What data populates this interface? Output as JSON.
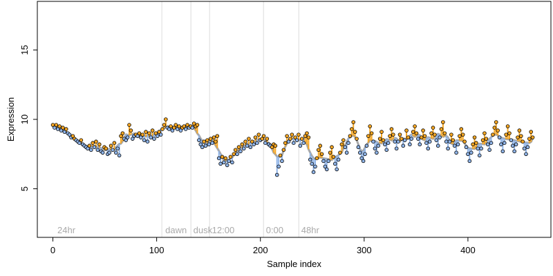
{
  "chart_data": {
    "type": "scatter",
    "xlabel": "Sample index",
    "ylabel": "Expression",
    "xlim": [
      -15,
      480
    ],
    "ylim": [
      1.5,
      18.5
    ],
    "x_ticks": [
      0,
      100,
      200,
      300,
      400
    ],
    "y_ticks": [
      5,
      10,
      15
    ],
    "grid": false,
    "colors": {
      "line": "#a8a8a8",
      "orange": "#f5a623",
      "blue": "#8fb4e8",
      "divider": "#dcdcdc",
      "label": "#a9a9a9"
    },
    "dividers": [
      105,
      133,
      151,
      203,
      237
    ],
    "region_labels": [
      {
        "text": "24hr",
        "x": 3
      },
      {
        "text": "dawn",
        "x": 107
      },
      {
        "text": "dusk",
        "x": 134
      },
      {
        "text": "12:00",
        "x": 152
      },
      {
        "text": "0:00",
        "x": 204
      },
      {
        "text": "48hr",
        "x": 238
      }
    ],
    "series": [
      {
        "values": [
          9.6,
          9.4,
          9.6,
          9.3,
          9.5,
          9.2,
          9.4,
          9.1,
          9.3,
          9.0,
          8.9,
          8.7,
          8.8,
          8.6,
          8.5,
          8.4,
          8.3,
          8.5,
          8.2,
          8.1,
          8.0,
          7.9,
          8.1,
          7.8,
          8.3,
          8.0,
          8.4,
          7.8,
          8.2,
          7.7,
          7.6,
          8.0,
          7.9,
          7.5,
          7.6,
          8.1,
          7.8,
          8.3,
          7.6,
          7.9,
          7.4,
          8.8,
          9.0,
          8.6,
          8.5,
          8.7,
          9.6,
          9.2,
          8.6,
          8.8,
          8.9,
          8.8,
          9.0,
          8.7,
          8.9,
          8.5,
          9.1,
          8.4,
          9.0,
          8.7,
          9.2,
          8.6,
          9.0,
          8.8,
          9.1,
          8.9,
          9.3,
          9.6,
          10.0,
          9.4,
          9.3,
          9.5,
          9.2,
          9.4,
          9.6,
          9.3,
          9.5,
          9.2,
          9.4,
          9.5,
          9.3,
          9.6,
          9.4,
          9.5,
          9.4,
          9.7,
          9.5,
          9.6,
          8.5,
          8.2,
          8.0,
          8.4,
          8.1,
          8.5,
          8.2,
          8.6,
          8.3,
          8.7,
          8.4,
          8.8,
          7.2,
          6.8,
          7.3,
          6.9,
          7.2,
          6.7,
          7.0,
          7.3,
          6.9,
          7.5,
          7.8,
          7.5,
          8.0,
          7.7,
          8.2,
          7.9,
          8.4,
          8.1,
          8.6,
          8.0,
          8.4,
          8.2,
          8.7,
          8.3,
          8.9,
          8.5,
          8.6,
          8.8,
          8.3,
          8.6,
          8.2,
          8.1,
          8.0,
          8.2,
          8.1,
          6.0,
          6.6,
          7.4,
          7.0,
          7.8,
          8.3,
          8.8,
          8.4,
          8.6,
          8.9,
          8.3,
          8.7,
          8.5,
          8.9,
          8.1,
          8.6,
          8.3,
          8.8,
          9.0,
          8.7,
          7.1,
          6.8,
          6.2,
          6.6,
          7.2,
          7.8,
          8.1,
          7.5,
          7.0,
          6.6,
          6.4,
          7.0,
          7.6,
          8.0,
          7.3,
          6.8,
          6.4,
          7.1,
          7.6,
          8.2,
          8.5,
          8.0,
          7.6,
          8.3,
          8.8,
          9.3,
          9.8,
          9.1,
          8.6,
          8.0,
          7.6,
          7.2,
          7.0,
          7.5,
          8.1,
          8.8,
          9.5,
          9.0,
          8.4,
          7.9,
          7.6,
          8.1,
          8.6,
          9.1,
          8.5,
          8.2,
          7.8,
          8.3,
          8.8,
          9.3,
          8.9,
          8.4,
          7.9,
          8.4,
          8.9,
          8.6,
          8.1,
          8.5,
          9.2,
          8.7,
          8.2,
          8.6,
          9.1,
          9.5,
          9.0,
          8.6,
          8.2,
          8.7,
          9.2,
          8.8,
          8.3,
          7.9,
          8.4,
          9.0,
          9.4,
          8.9,
          8.5,
          8.1,
          8.7,
          9.3,
          9.8,
          9.0,
          8.4,
          7.9,
          8.4,
          8.9,
          8.5,
          8.1,
          7.6,
          8.2,
          8.8,
          9.3,
          8.9,
          8.4,
          8.0,
          7.5,
          7.0,
          7.6,
          8.2,
          8.7,
          8.3,
          7.9,
          7.4,
          7.9,
          8.5,
          9.0,
          8.6,
          8.2,
          7.8,
          8.3,
          8.9,
          9.4,
          9.8,
          9.2,
          8.7,
          8.2,
          7.7,
          8.3,
          8.9,
          9.5,
          9.0,
          8.5,
          8.1,
          7.7,
          8.2,
          8.7,
          9.2,
          8.8,
          8.4,
          7.9,
          7.5,
          8.0,
          8.6,
          9.1,
          8.7
        ]
      }
    ]
  }
}
